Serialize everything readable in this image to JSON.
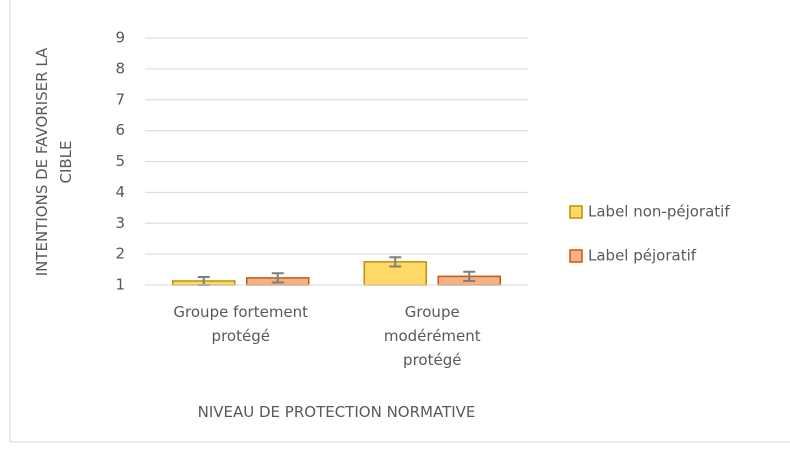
{
  "chart_data": {
    "type": "bar",
    "categories": [
      "Groupe fortement protégé",
      "Groupe modérément protégé"
    ],
    "series": [
      {
        "name": "Label non-péjoratif",
        "color": "#FFD966",
        "edge": "#BF9000",
        "values": [
          1.13,
          1.75
        ],
        "errors": [
          0.13,
          0.15
        ]
      },
      {
        "name": "Label péjoratif",
        "color": "#F4B183",
        "edge": "#C55A11",
        "values": [
          1.23,
          1.28
        ],
        "errors": [
          0.15,
          0.15
        ]
      }
    ],
    "y_label": "INTENTIONS DE FAVORISER LA CIBLE",
    "x_label": "NIVEAU DE PROTECTION NORMATIVE",
    "ylim": [
      1,
      9
    ],
    "yticks": [
      1,
      2,
      3,
      4,
      5,
      6,
      7,
      8,
      9
    ],
    "grid": true,
    "legend": "right"
  }
}
